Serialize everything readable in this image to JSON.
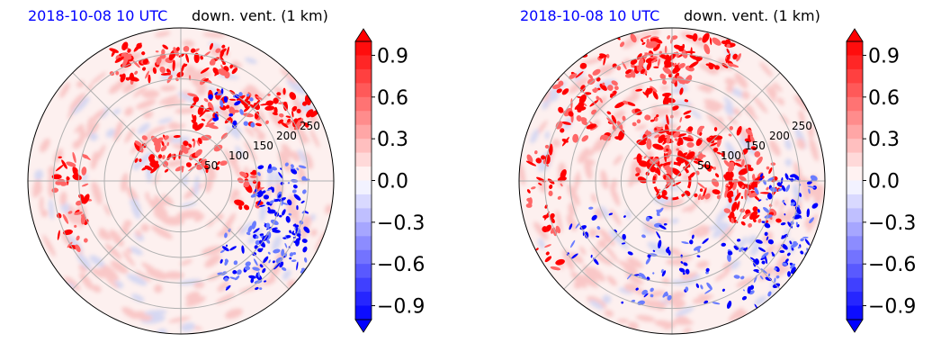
{
  "chart_data": [
    {
      "type": "heatmap",
      "projection": "polar",
      "title_left": "2018-10-08 10 UTC",
      "title_right": "down. vent. (1 km)",
      "radial_tick_labels": [
        "50",
        "100",
        "150",
        "200",
        "250"
      ],
      "radial_ticks": [
        50,
        100,
        150,
        200,
        250
      ],
      "r_max": 300,
      "angular_grid_deg": 45,
      "grid": true,
      "colorbar": {
        "ticks": [
          0.9,
          0.6,
          0.3,
          0.0,
          -0.3,
          -0.6,
          -0.9
        ],
        "tick_labels": [
          "0.9",
          "0.6",
          "0.3",
          "0.0",
          "−0.3",
          "−0.6",
          "−0.9"
        ],
        "range": [
          -1.0,
          1.0
        ],
        "extend": "both",
        "colormap": "bwr"
      }
    },
    {
      "type": "heatmap",
      "projection": "polar",
      "title_left": "2018-10-08 10 UTC",
      "title_right": "down. vent. (1 km)",
      "radial_tick_labels": [
        "50",
        "100",
        "150",
        "200",
        "250"
      ],
      "radial_ticks": [
        50,
        100,
        150,
        200,
        250
      ],
      "r_max": 300,
      "angular_grid_deg": 45,
      "grid": true,
      "colorbar": {
        "ticks": [
          0.9,
          0.6,
          0.3,
          0.0,
          -0.3,
          -0.6,
          -0.9
        ],
        "tick_labels": [
          "0.9",
          "0.6",
          "0.3",
          "0.0",
          "−0.3",
          "−0.6",
          "−0.9"
        ],
        "range": [
          -1.0,
          1.0
        ],
        "extend": "both",
        "colormap": "bwr"
      }
    }
  ],
  "colors": {
    "title_date": "#0000ff",
    "title_label": "#000000",
    "positive": "#ff0000",
    "negative": "#0000ff",
    "background_tint": "#fdeceb",
    "grid": "#b0b0b0"
  }
}
